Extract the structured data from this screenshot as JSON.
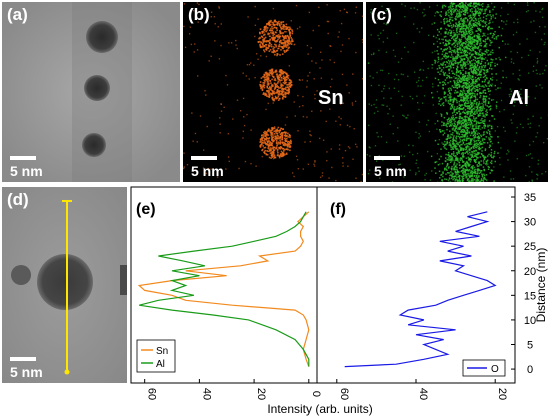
{
  "panels": {
    "a": {
      "label": "(a)",
      "scale": "5 nm"
    },
    "b": {
      "label": "(b)",
      "scale": "5 nm",
      "element": "Sn",
      "color": "#e86a1a"
    },
    "c": {
      "label": "(c)",
      "scale": "5 nm",
      "element": "Al",
      "color": "#2ec02e"
    },
    "d": {
      "label": "(d)",
      "scale": "5 nm"
    },
    "e": {
      "label": "(e)"
    },
    "f": {
      "label": "(f)"
    }
  },
  "colors": {
    "sn": "#f28a1e",
    "al": "#1a9c1a",
    "o": "#1a1ae6",
    "line": "#ffe600"
  },
  "chart_data": [
    {
      "type": "line",
      "panel": "e",
      "orientation": "vertical-profile",
      "xlabel": "Intensity (arb. units)",
      "xlim": [
        65,
        -3
      ],
      "xticks": [
        60,
        40,
        20,
        0
      ],
      "ylim": [
        -1,
        35
      ],
      "legend_placement": "bottom-left",
      "series": [
        {
          "name": "Sn",
          "color": "#f28a1e",
          "y": [
            0.5,
            2,
            4,
            6,
            8,
            10,
            11,
            12,
            13,
            14,
            15,
            16,
            17,
            18,
            19,
            20,
            21,
            22,
            23,
            24,
            25,
            26,
            27,
            28,
            29,
            30,
            31,
            32
          ],
          "x": [
            0,
            1,
            2,
            1,
            0,
            1,
            2,
            5,
            28,
            45,
            50,
            60,
            62,
            50,
            30,
            45,
            25,
            15,
            18,
            5,
            3,
            2,
            3,
            3,
            2,
            4,
            2,
            0
          ]
        },
        {
          "name": "Al",
          "color": "#1a9c1a",
          "y": [
            0.5,
            2,
            4,
            6,
            8,
            10,
            11,
            12,
            13,
            14,
            15,
            16,
            17,
            18,
            19,
            20,
            21,
            22,
            23,
            24,
            25,
            26,
            27,
            28,
            29,
            30,
            31,
            32
          ],
          "x": [
            0,
            0,
            2,
            5,
            12,
            22,
            35,
            50,
            62,
            55,
            42,
            50,
            45,
            50,
            40,
            50,
            38,
            46,
            55,
            42,
            28,
            20,
            12,
            8,
            5,
            3,
            2,
            1
          ]
        }
      ]
    },
    {
      "type": "line",
      "panel": "f",
      "orientation": "vertical-profile",
      "xlim": [
        65,
        15
      ],
      "xticks": [
        60,
        40,
        20
      ],
      "ylabel": "Distance (nm)",
      "ylim": [
        -1,
        35
      ],
      "yticks": [
        0,
        5,
        10,
        15,
        20,
        25,
        30,
        35
      ],
      "legend_placement": "bottom-right",
      "series": [
        {
          "name": "O",
          "color": "#1a1ae6",
          "y": [
            0.5,
            1,
            2,
            3,
            4,
            5,
            6,
            7,
            8,
            9,
            10,
            11,
            12,
            13,
            14,
            15,
            16,
            17,
            18,
            19,
            20,
            21,
            22,
            23,
            24,
            25,
            26,
            27,
            28,
            29,
            30,
            31,
            32
          ],
          "x": [
            58,
            45,
            38,
            32,
            35,
            38,
            33,
            40,
            30,
            42,
            38,
            44,
            42,
            35,
            32,
            28,
            24,
            20,
            22,
            26,
            30,
            28,
            34,
            26,
            32,
            28,
            34,
            24,
            30,
            26,
            22,
            27,
            22
          ]
        }
      ]
    }
  ]
}
